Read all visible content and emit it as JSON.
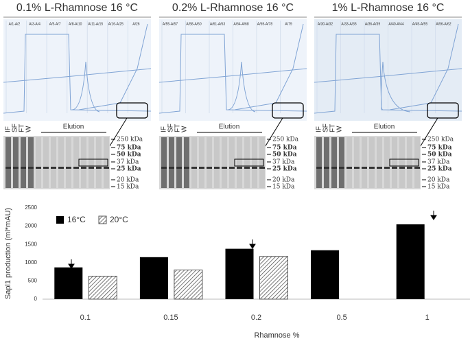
{
  "panels": [
    {
      "title": "0.1% L-Rhamnose 16 °C",
      "fractions": [
        "A/1-A/2",
        "A/3-A/4",
        "A/5-A/7",
        "A/8-A/10",
        "A/11-A/15",
        "A/16-A/25",
        "A/26"
      ]
    },
    {
      "title": "0.2% L-Rhamnose 16 °C",
      "fractions": [
        "A/55-A/57",
        "A/58-A/60",
        "A/61-A/63",
        "A/64-A/68",
        "A/69-A/78",
        "A/79"
      ]
    },
    {
      "title": "1% L-Rhamnose 16 °C",
      "fractions": [
        "A/30-A/32",
        "A/33-A/35",
        "A/36-A/39",
        "A/40-A/44",
        "A/45-A/55",
        "A/56-A/62"
      ]
    }
  ],
  "gel": {
    "lanes": [
      "IF",
      "SF",
      "FT",
      "W"
    ],
    "elution": "Elution",
    "markers": [
      "250 kDa",
      "75 kDa",
      "50 kDa",
      "37 kDa",
      "25 kDa",
      "20 kDa",
      "15 kDa"
    ]
  },
  "chart_data": {
    "type": "bar",
    "y_label": "Sapl1 production (ml*mAU)",
    "x_label": "Rhamnose %",
    "categories": [
      "0.1",
      "0.15",
      "0.2",
      "0.5",
      "1"
    ],
    "series": [
      {
        "name": "16°C",
        "color": "#000000",
        "values": [
          870,
          1150,
          1380,
          1340,
          2050
        ]
      },
      {
        "name": "20°C",
        "color": "#555555",
        "values": [
          630,
          800,
          1170,
          null,
          null
        ]
      }
    ],
    "ylim": [
      0,
      2500
    ],
    "yticks": [
      0,
      500,
      1000,
      1500,
      2000,
      2500
    ],
    "grid": false,
    "legend": "top-left"
  }
}
